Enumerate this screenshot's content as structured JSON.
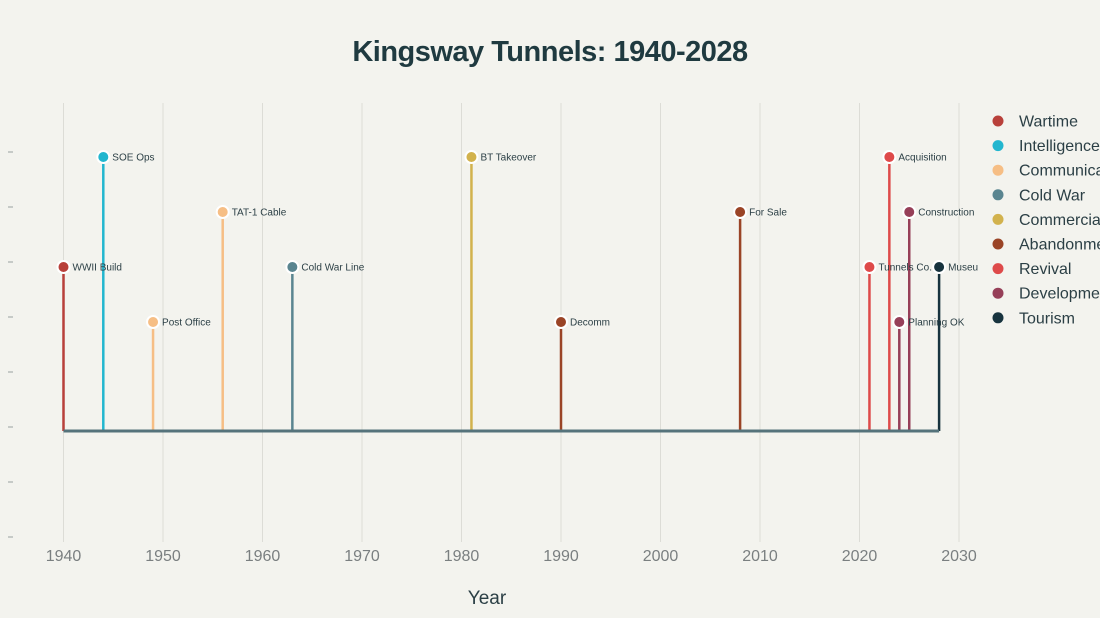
{
  "chart_data": {
    "type": "timeline",
    "title": "Kingsway Tunnels: 1940-2028",
    "xlabel": "Year",
    "xlim": [
      1940,
      2034
    ],
    "x_ticks": [
      1940,
      1950,
      1960,
      1970,
      1980,
      1990,
      2000,
      2010,
      2020,
      2030
    ],
    "grid": true,
    "legend_position": "right",
    "baseline": {
      "from": 1940,
      "to": 2028,
      "color": "#55737b"
    },
    "categories": [
      {
        "name": "Wartime",
        "color": "#b8403a"
      },
      {
        "name": "Intelligence",
        "color": "#22b6cf"
      },
      {
        "name": "Communications",
        "color": "#f6be85"
      },
      {
        "name": "Cold War",
        "color": "#5a8590"
      },
      {
        "name": "Commercial",
        "color": "#d2b24d"
      },
      {
        "name": "Abandonment",
        "color": "#9a4426"
      },
      {
        "name": "Revival",
        "color": "#de4a4a"
      },
      {
        "name": "Development",
        "color": "#963f58"
      },
      {
        "name": "Tourism",
        "color": "#17333e"
      }
    ],
    "events": [
      {
        "year": 1940,
        "label": "WWII Build",
        "category": "Wartime",
        "level": 3
      },
      {
        "year": 1944,
        "label": "SOE Ops",
        "category": "Intelligence",
        "level": 5
      },
      {
        "year": 1949,
        "label": "Post Office",
        "category": "Communications",
        "level": 2
      },
      {
        "year": 1956,
        "label": "TAT-1 Cable",
        "category": "Communications",
        "level": 4
      },
      {
        "year": 1963,
        "label": "Cold War Line",
        "category": "Cold War",
        "level": 3
      },
      {
        "year": 1981,
        "label": "BT Takeover",
        "category": "Commercial",
        "level": 5
      },
      {
        "year": 1990,
        "label": "Decomm",
        "category": "Abandonment",
        "level": 2
      },
      {
        "year": 2008,
        "label": "For Sale",
        "category": "Abandonment",
        "level": 4
      },
      {
        "year": 2021,
        "label": "Tunnels Co.",
        "category": "Revival",
        "level": 3
      },
      {
        "year": 2023,
        "label": "Acquisition",
        "category": "Revival",
        "level": 5
      },
      {
        "year": 2024,
        "label": "Planning OK",
        "category": "Development",
        "level": 2
      },
      {
        "year": 2025,
        "label": "Construction",
        "category": "Development",
        "level": 4
      },
      {
        "year": 2028,
        "label": "Museu",
        "category": "Tourism",
        "level": 3
      }
    ]
  }
}
